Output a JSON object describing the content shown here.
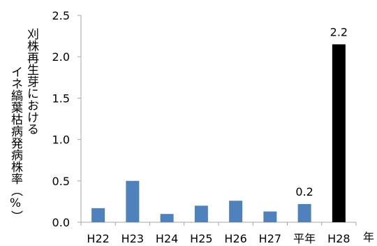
{
  "chart_data": {
    "type": "bar",
    "categories": [
      "H22",
      "H23",
      "H24",
      "H25",
      "H26",
      "H27",
      "平年",
      "H28"
    ],
    "values": [
      0.17,
      0.5,
      0.1,
      0.2,
      0.26,
      0.13,
      0.22,
      2.15
    ],
    "data_labels": [
      "",
      "",
      "",
      "",
      "",
      "",
      "0.2",
      "2.2"
    ],
    "bar_colors": [
      "#4f81bd",
      "#4f81bd",
      "#4f81bd",
      "#4f81bd",
      "#4f81bd",
      "#4f81bd",
      "#4f81bd",
      "#000000"
    ],
    "ylim": [
      0,
      2.5
    ],
    "yticks": [
      "0.0",
      "0.5",
      "1.0",
      "1.5",
      "2.0",
      "2.5"
    ],
    "ytick_values": [
      0,
      0.5,
      1.0,
      1.5,
      2.0,
      2.5
    ],
    "xlabel": "年",
    "ylabel_lines": [
      "刈株再生芽における",
      "イネ縞葉枯病発病株率（%）"
    ],
    "grid": false,
    "legend": "none"
  }
}
